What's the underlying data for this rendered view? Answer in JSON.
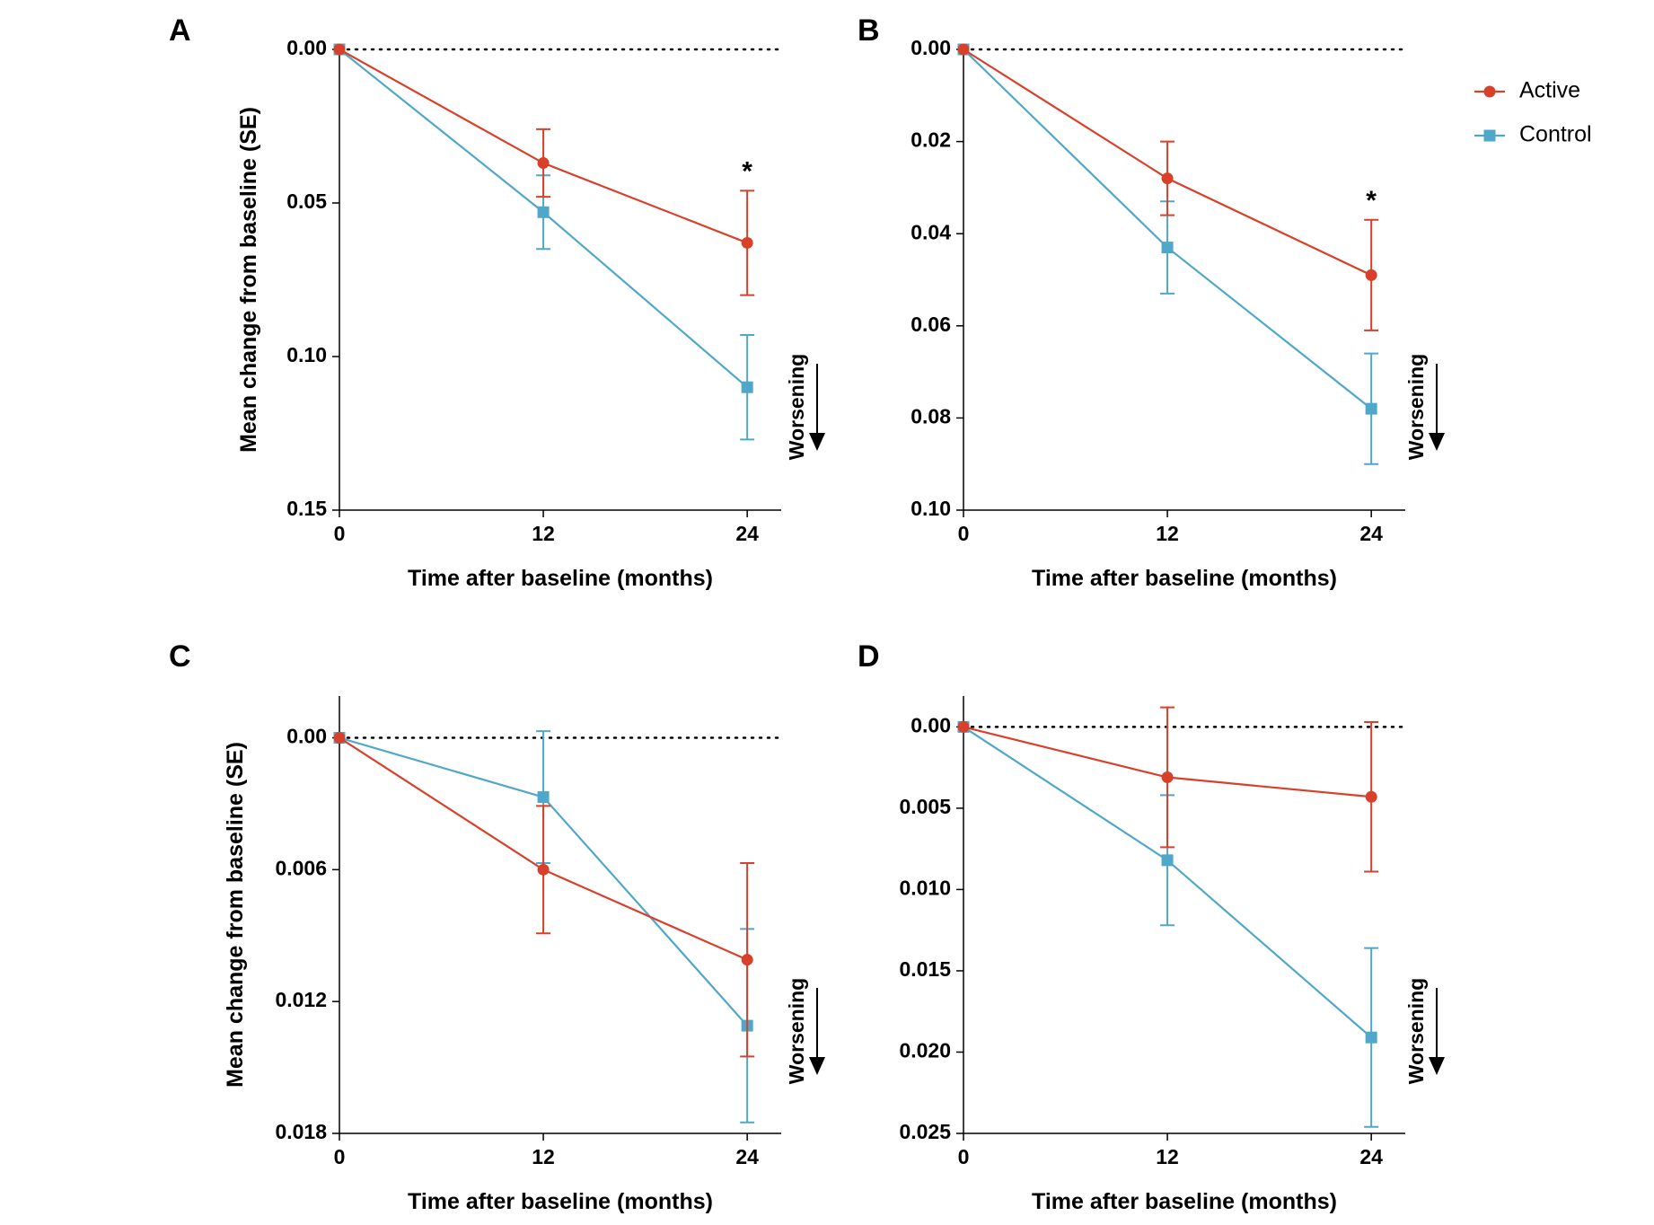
{
  "colors": {
    "active": "#d9402a",
    "control": "#4fa8c9"
  },
  "legend": {
    "position": "top-right",
    "items": [
      "Active",
      "Control"
    ]
  },
  "chart_data": [
    {
      "panel": "A",
      "type": "line",
      "x": [
        0,
        12,
        24
      ],
      "xticks": [
        "0",
        "12",
        "24"
      ],
      "yticks": [
        "0.00",
        "0.05",
        "0.10",
        "0.15"
      ],
      "ylim": [
        0,
        0.15
      ],
      "y_inverted": true,
      "xlabel": "Time after baseline (months)",
      "ylabel": "Mean change from baseline (SE)",
      "annotation": "Worsening",
      "significance": {
        "x": 24,
        "mark": "*"
      },
      "series": [
        {
          "name": "Active",
          "marker": "circle",
          "values": [
            0.0,
            0.037,
            0.063
          ],
          "se": [
            0,
            0.011,
            0.017
          ]
        },
        {
          "name": "Control",
          "marker": "square",
          "values": [
            0.0,
            0.053,
            0.11
          ],
          "se": [
            0,
            0.012,
            0.017
          ]
        }
      ]
    },
    {
      "panel": "B",
      "type": "line",
      "x": [
        0,
        12,
        24
      ],
      "xticks": [
        "0",
        "12",
        "24"
      ],
      "yticks": [
        "0.00",
        "0.02",
        "0.04",
        "0.06",
        "0.08",
        "0.10"
      ],
      "ylim": [
        0,
        0.1
      ],
      "y_inverted": true,
      "xlabel": "Time after baseline (months)",
      "ylabel": "",
      "annotation": "Worsening",
      "significance": {
        "x": 24,
        "mark": "*"
      },
      "series": [
        {
          "name": "Active",
          "marker": "circle",
          "values": [
            0.0,
            0.028,
            0.049
          ],
          "se": [
            0,
            0.008,
            0.012
          ]
        },
        {
          "name": "Control",
          "marker": "square",
          "values": [
            0.0,
            0.043,
            0.078
          ],
          "se": [
            0,
            0.01,
            0.012
          ]
        }
      ]
    },
    {
      "panel": "C",
      "type": "line",
      "x": [
        0,
        12,
        24
      ],
      "xticks": [
        "0",
        "12",
        "24"
      ],
      "yticks": [
        "0.00",
        "0.006",
        "0.012",
        "0.018"
      ],
      "ylim": [
        -0.0019,
        0.018
      ],
      "y_inverted": true,
      "xlabel": "Time after baseline (months)",
      "ylabel": "Mean change from baseline (SE)",
      "annotation": "Worsening",
      "series": [
        {
          "name": "Active",
          "marker": "circle",
          "values": [
            0.0,
            0.006,
            0.0101
          ],
          "se": [
            0,
            0.0029,
            0.0044
          ]
        },
        {
          "name": "Control",
          "marker": "square",
          "values": [
            0.0,
            0.0027,
            0.0131
          ],
          "se": [
            0,
            0.003,
            0.0044
          ]
        }
      ]
    },
    {
      "panel": "D",
      "type": "line",
      "x": [
        0,
        12,
        24
      ],
      "xticks": [
        "0",
        "12",
        "24"
      ],
      "yticks": [
        "0.00",
        "0.005",
        "0.010",
        "0.015",
        "0.020",
        "0.025"
      ],
      "ylim": [
        -0.0019,
        0.025
      ],
      "y_inverted": true,
      "xlabel": "Time after baseline (months)",
      "ylabel": "",
      "annotation": "Worsening",
      "series": [
        {
          "name": "Active",
          "marker": "circle",
          "values": [
            0.0,
            0.0031,
            0.0043
          ],
          "se": [
            0,
            0.0043,
            0.0046
          ]
        },
        {
          "name": "Control",
          "marker": "square",
          "values": [
            0.0,
            0.0082,
            0.0191
          ],
          "se": [
            0,
            0.004,
            0.0055
          ]
        }
      ]
    }
  ]
}
